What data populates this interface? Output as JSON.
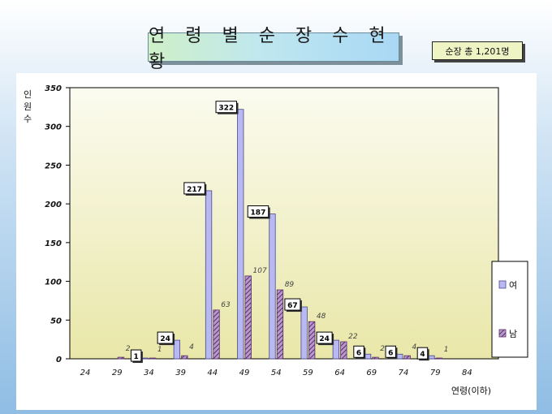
{
  "header": {
    "title": "연 령 별 순 장 수 현 황",
    "total": "순장 총 1,201명"
  },
  "chart_data": {
    "type": "bar",
    "categories": [
      "24",
      "29",
      "34",
      "39",
      "44",
      "49",
      "54",
      "59",
      "64",
      "69",
      "74",
      "79",
      "84"
    ],
    "series": [
      {
        "name": "여",
        "values": [
          0,
          0,
          1,
          24,
          217,
          322,
          187,
          67,
          24,
          6,
          6,
          4,
          0
        ],
        "color": "#b8b8f2"
      },
      {
        "name": "남",
        "values": [
          0,
          2,
          1,
          4,
          63,
          107,
          89,
          48,
          22,
          2,
          4,
          1,
          0
        ],
        "color": "#8a4f8a"
      }
    ],
    "ylim": [
      0,
      350
    ],
    "yticks": [
      0,
      50,
      100,
      150,
      200,
      250,
      300,
      350
    ],
    "ylabel": "인원수",
    "xlabel": "연령(이하)",
    "legend": "right",
    "plot_background": "#f1f0c2"
  }
}
